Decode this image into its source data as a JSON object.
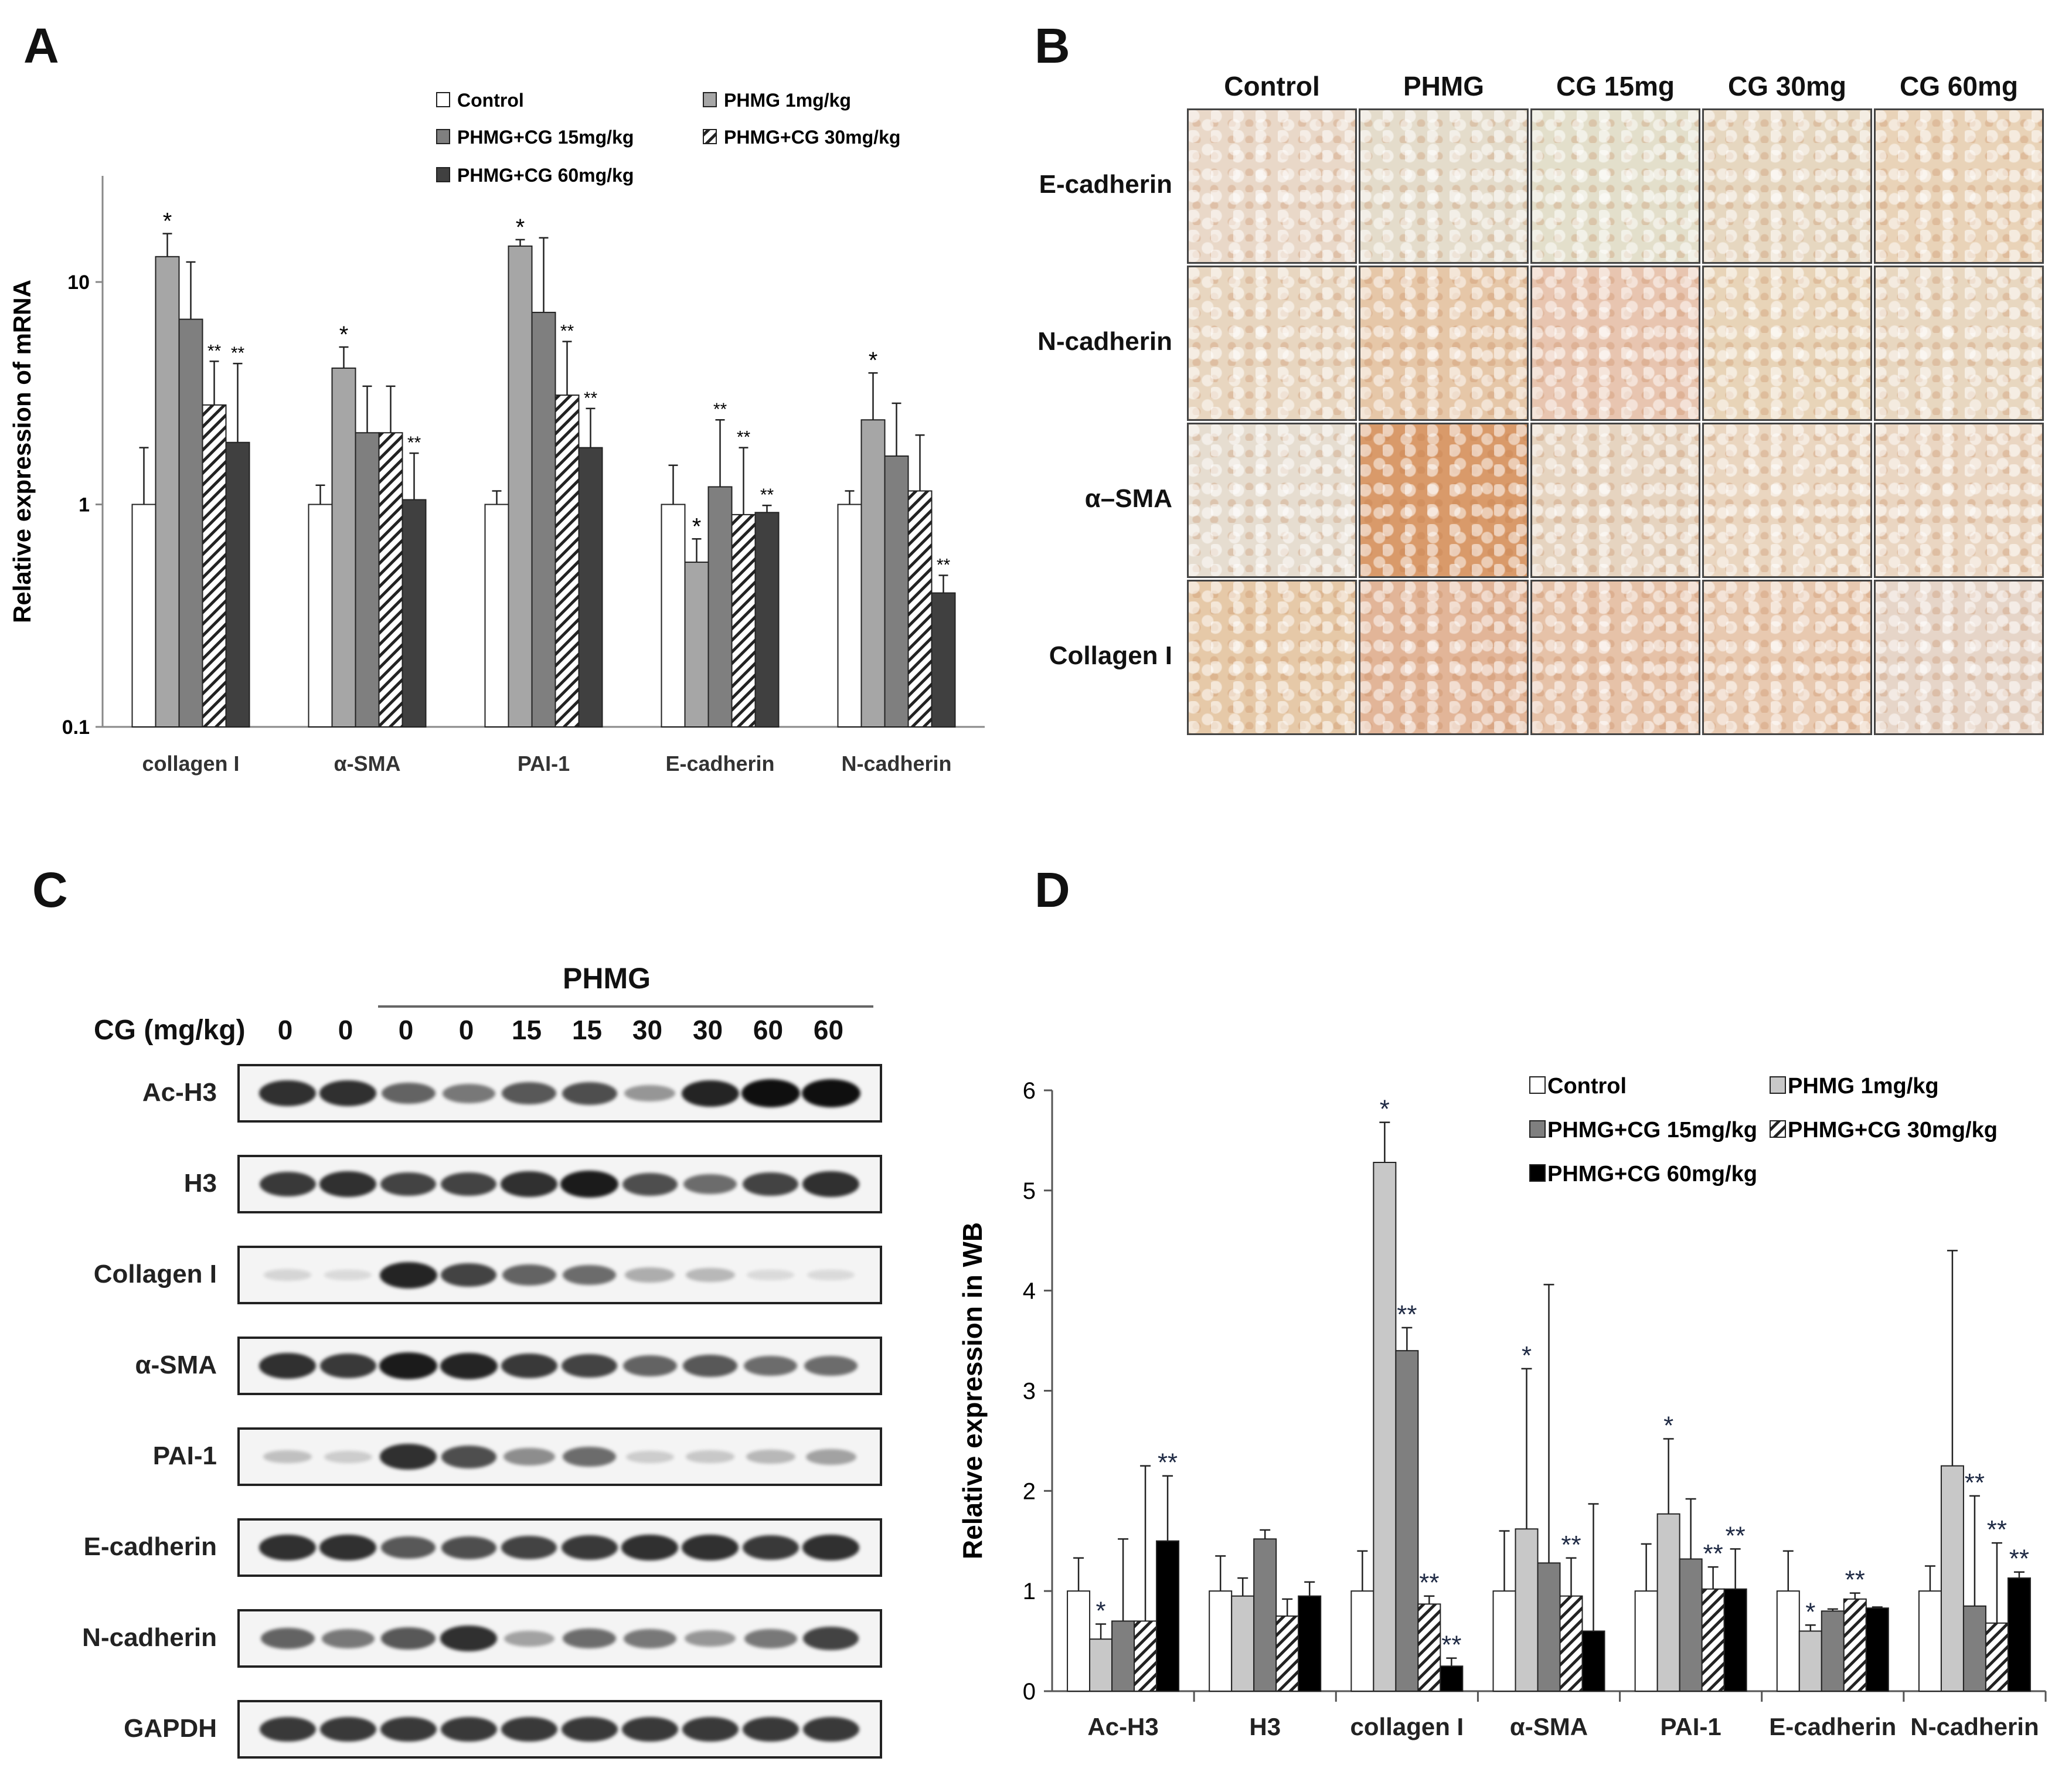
{
  "panel_labels": {
    "a": "A",
    "b": "B",
    "c": "C",
    "d": "D"
  },
  "chart_data": [
    {
      "id": "A",
      "type": "bar",
      "yscale": "log",
      "ylabel": "Relative expression of mRNA",
      "ylim": [
        0.1,
        30
      ],
      "yticks": [
        0.1,
        1,
        10
      ],
      "ytick_labels": [
        "0.1",
        "1",
        "10"
      ],
      "categories": [
        "collagen I",
        "α-SMA",
        "PAI-1",
        "E-cadherin",
        "N-cadherin"
      ],
      "series": [
        {
          "name": "Control",
          "values": [
            1,
            1,
            1,
            1,
            1
          ],
          "errors": [
            0.8,
            0.22,
            0.15,
            0.5,
            0.15
          ],
          "marks": [
            "",
            "",
            "",
            "",
            ""
          ]
        },
        {
          "name": "PHMG 1mg/kg",
          "values": [
            13,
            4.1,
            14.5,
            0.55,
            2.4
          ],
          "errors": [
            3.5,
            1.0,
            1.0,
            0.15,
            1.5
          ],
          "marks": [
            "*",
            "*",
            "*",
            "*",
            "*"
          ]
        },
        {
          "name": "PHMG+CG 15mg/kg",
          "values": [
            6.8,
            2.1,
            7.3,
            1.2,
            1.65
          ],
          "errors": [
            5.5,
            1.3,
            8.5,
            1.2,
            1.2
          ],
          "marks": [
            "",
            "",
            "",
            "**",
            ""
          ]
        },
        {
          "name": "PHMG+CG 30mg/kg",
          "values": [
            2.8,
            2.1,
            3.1,
            0.9,
            1.15
          ],
          "errors": [
            1.6,
            1.3,
            2.3,
            0.9,
            0.9
          ],
          "marks": [
            "**",
            "",
            "**",
            "**",
            ""
          ]
        },
        {
          "name": "PHMG+CG 60mg/kg",
          "values": [
            1.9,
            1.05,
            1.8,
            0.92,
            0.4
          ],
          "errors": [
            2.4,
            0.65,
            0.9,
            0.07,
            0.08
          ],
          "marks": [
            "**",
            "**",
            "**",
            "**",
            "**"
          ]
        }
      ],
      "legend": [
        "Control",
        "PHMG 1mg/kg",
        "PHMG+CG 15mg/kg",
        "PHMG+CG 30mg/kg",
        "PHMG+CG 60mg/kg"
      ],
      "legend_placement": "top"
    },
    {
      "id": "D",
      "type": "bar",
      "ylabel": "Relative expression in WB",
      "ylim": [
        0,
        6
      ],
      "yticks": [
        0,
        1,
        2,
        3,
        4,
        5,
        6
      ],
      "ytick_labels": [
        "0",
        "1",
        "2",
        "3",
        "4",
        "5",
        "6"
      ],
      "categories": [
        "Ac-H3",
        "H3",
        "collagen I",
        "α-SMA",
        "PAI-1",
        "E-cadherin",
        "N-cadherin"
      ],
      "series": [
        {
          "name": "Control",
          "values": [
            1,
            1,
            1,
            1,
            1,
            1,
            1
          ],
          "errors": [
            0.33,
            0.35,
            0.4,
            0.6,
            0.47,
            0.4,
            0.25
          ],
          "marks": [
            "",
            "",
            "",
            "",
            "",
            "",
            ""
          ]
        },
        {
          "name": "PHMG 1mg/kg",
          "values": [
            0.52,
            0.95,
            5.28,
            1.62,
            1.77,
            0.6,
            2.25
          ],
          "errors": [
            0.15,
            0.18,
            0.4,
            1.6,
            0.75,
            0.06,
            2.15
          ],
          "marks": [
            "*",
            "",
            "*",
            "*",
            "*",
            "*",
            ""
          ]
        },
        {
          "name": "PHMG+CG 15mg/kg",
          "values": [
            0.7,
            1.52,
            3.4,
            1.28,
            1.32,
            0.8,
            0.85
          ],
          "errors": [
            0.82,
            0.09,
            0.23,
            2.78,
            0.6,
            0.02,
            1.1
          ],
          "marks": [
            "",
            "",
            "**",
            "",
            "",
            "",
            "**"
          ]
        },
        {
          "name": "PHMG+CG 30mg/kg",
          "values": [
            0.7,
            0.75,
            0.87,
            0.95,
            1.02,
            0.92,
            0.68
          ],
          "errors": [
            1.55,
            0.17,
            0.08,
            0.38,
            0.22,
            0.06,
            0.8
          ],
          "marks": [
            "",
            "",
            "**",
            "**",
            "**",
            "**",
            "**"
          ]
        },
        {
          "name": "PHMG+CG 60mg/kg",
          "values": [
            1.5,
            0.95,
            0.25,
            0.6,
            1.02,
            0.83,
            1.13
          ],
          "errors": [
            0.65,
            0.14,
            0.08,
            1.27,
            0.4,
            0.01,
            0.06
          ],
          "marks": [
            "**",
            "",
            "**",
            "",
            "**",
            "",
            "**"
          ]
        }
      ],
      "legend": [
        "Control",
        "PHMG 1mg/kg",
        "PHMG+CG 15mg/kg",
        "PHMG+CG 30mg/kg",
        "PHMG+CG 60mg/kg"
      ],
      "legend_placement": "top-right"
    }
  ],
  "panelB": {
    "columns": [
      "Control",
      "PHMG",
      "CG 15mg",
      "CG 30mg",
      "CG 60mg"
    ],
    "rows": [
      "E-cadherin",
      "N-cadherin",
      "α–SMA",
      "Collagen I"
    ]
  },
  "panelC": {
    "group_label": "PHMG",
    "cg_label": "CG (mg/kg)",
    "cg_values": [
      "0",
      "0",
      "0",
      "0",
      "15",
      "15",
      "30",
      "30",
      "60",
      "60"
    ],
    "blots": [
      {
        "label": "Ac-H3",
        "intensity": [
          0.85,
          0.85,
          0.6,
          0.5,
          0.65,
          0.7,
          0.35,
          0.9,
          1.0,
          1.0
        ]
      },
      {
        "label": "H3",
        "intensity": [
          0.8,
          0.85,
          0.75,
          0.75,
          0.85,
          0.95,
          0.7,
          0.55,
          0.75,
          0.85
        ]
      },
      {
        "label": "Collagen I",
        "intensity": [
          0.05,
          0.03,
          0.9,
          0.75,
          0.6,
          0.55,
          0.25,
          0.2,
          0.03,
          0.03
        ]
      },
      {
        "label": "α-SMA",
        "intensity": [
          0.85,
          0.8,
          0.95,
          0.9,
          0.8,
          0.75,
          0.6,
          0.65,
          0.55,
          0.55
        ]
      },
      {
        "label": "PAI-1",
        "intensity": [
          0.15,
          0.1,
          0.85,
          0.7,
          0.4,
          0.55,
          0.1,
          0.12,
          0.2,
          0.3
        ]
      },
      {
        "label": "E-cadherin",
        "intensity": [
          0.85,
          0.85,
          0.65,
          0.7,
          0.75,
          0.8,
          0.85,
          0.85,
          0.8,
          0.85
        ]
      },
      {
        "label": "N-cadherin",
        "intensity": [
          0.6,
          0.5,
          0.65,
          0.85,
          0.3,
          0.55,
          0.5,
          0.35,
          0.5,
          0.75
        ]
      },
      {
        "label": "GAPDH",
        "intensity": [
          0.8,
          0.8,
          0.8,
          0.8,
          0.8,
          0.8,
          0.8,
          0.8,
          0.8,
          0.8
        ]
      }
    ]
  },
  "colors": {
    "series": [
      "#ffffff",
      "#a6a6a6",
      "#7f7f7f",
      "hatch",
      "#404040"
    ],
    "seriesD": [
      "#ffffff",
      "#c8c8c8",
      "#7f7f7f",
      "hatch",
      "#000000"
    ]
  }
}
